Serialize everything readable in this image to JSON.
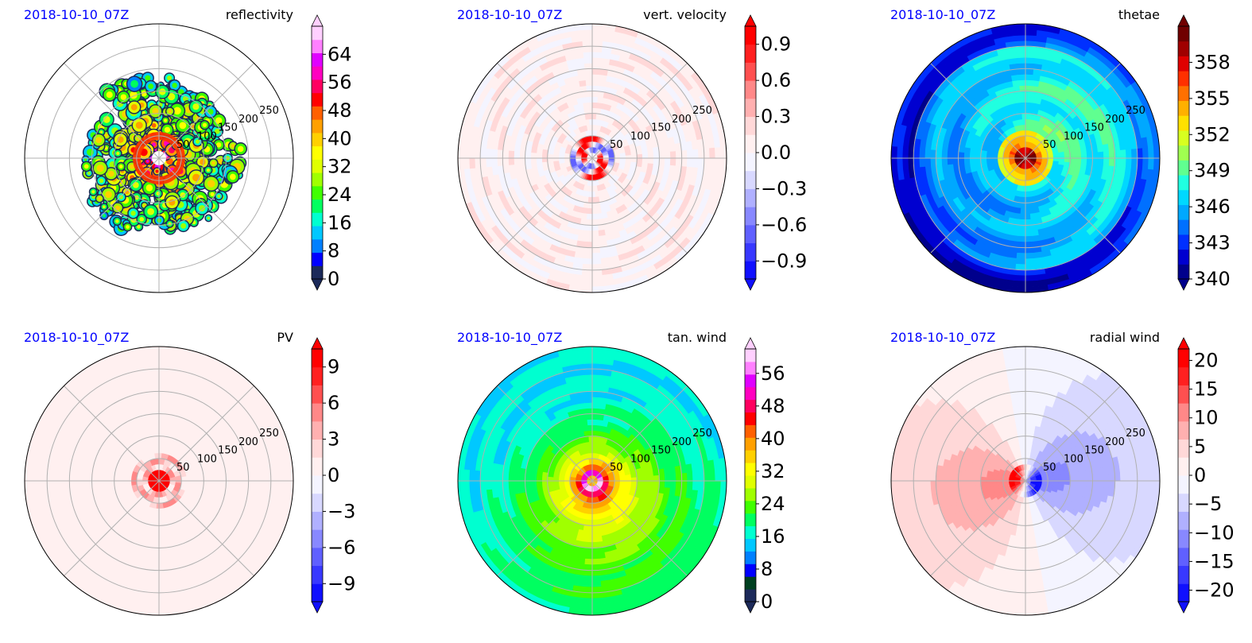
{
  "figure": {
    "layout": "2 rows x 3 columns polar panels"
  },
  "chart_data": [
    {
      "type": "heatmap",
      "projection": "polar",
      "date_label": "2018-10-10_07Z",
      "title": "reflectivity",
      "radial_ticks": [
        "50",
        "100",
        "150",
        "200",
        "250"
      ],
      "rlim": [
        0,
        300
      ],
      "grid": true,
      "colorbar": {
        "ticks": [
          "0",
          "8",
          "16",
          "24",
          "32",
          "40",
          "48",
          "56",
          "64"
        ],
        "values": [
          0,
          8,
          16,
          24,
          32,
          40,
          48,
          56,
          64
        ],
        "range": [
          0,
          72
        ],
        "extend": "both",
        "colors": [
          "#1c2a5a",
          "#0000ff",
          "#0080ff",
          "#00c8ff",
          "#00ffd0",
          "#00ff60",
          "#40ff00",
          "#a0ff00",
          "#e0ff00",
          "#ffff00",
          "#ffd000",
          "#ffa000",
          "#ff6000",
          "#ff0000",
          "#ff0060",
          "#ff00c0",
          "#e000ff",
          "#ff80ff",
          "#ffd0ff"
        ]
      },
      "field": {
        "pattern": "convective_bands",
        "eye_radius": 12
      }
    },
    {
      "type": "heatmap",
      "projection": "polar",
      "date_label": "2018-10-10_07Z",
      "title": "vert. velocity",
      "radial_ticks": [
        "50",
        "100",
        "150",
        "200",
        "250"
      ],
      "rlim": [
        0,
        300
      ],
      "grid": true,
      "colorbar": {
        "ticks": [
          "−0.9",
          "−0.6",
          "−0.3",
          "0.0",
          "0.3",
          "0.6",
          "0.9"
        ],
        "values": [
          -0.9,
          -0.6,
          -0.3,
          0.0,
          0.3,
          0.6,
          0.9
        ],
        "range": [
          -1.05,
          1.05
        ],
        "extend": "both",
        "colors": [
          "#1010ff",
          "#3838ff",
          "#6060ff",
          "#8888ff",
          "#b0b0ff",
          "#d8d8ff",
          "#f4f4ff",
          "#fff0f0",
          "#ffd8d8",
          "#ffb0b0",
          "#ff8888",
          "#ff5050",
          "#ff2020",
          "#ff0000"
        ]
      },
      "field": {
        "pattern": "speckled_diverging",
        "eyewall_peak": 1.0
      }
    },
    {
      "type": "heatmap",
      "projection": "polar",
      "date_label": "2018-10-10_07Z",
      "title": "thetae",
      "radial_ticks": [
        "50",
        "100",
        "150",
        "200",
        "250"
      ],
      "rlim": [
        0,
        300
      ],
      "grid": true,
      "colorbar": {
        "ticks": [
          "340",
          "343",
          "346",
          "349",
          "352",
          "355",
          "358"
        ],
        "values": [
          340,
          343,
          346,
          349,
          352,
          355,
          358
        ],
        "range": [
          340,
          361
        ],
        "extend": "both",
        "colors": [
          "#00008c",
          "#0000d0",
          "#0030ff",
          "#0070ff",
          "#00a8ff",
          "#00d8ff",
          "#20ffe0",
          "#60ff90",
          "#a0ff50",
          "#d8ff20",
          "#ffe000",
          "#ffb000",
          "#ff7000",
          "#ff3000",
          "#e00000",
          "#a00000",
          "#700000"
        ]
      },
      "field": {
        "pattern": "warm_core",
        "core_value": 359,
        "mean_value": 348
      }
    },
    {
      "type": "heatmap",
      "projection": "polar",
      "date_label": "2018-10-10_07Z",
      "title": "PV",
      "radial_ticks": [
        "50",
        "100",
        "150",
        "200",
        "250"
      ],
      "rlim": [
        0,
        300
      ],
      "grid": true,
      "colorbar": {
        "ticks": [
          "−9",
          "−6",
          "−3",
          "0",
          "3",
          "6",
          "9"
        ],
        "values": [
          -9,
          -6,
          -3,
          0,
          3,
          6,
          9
        ],
        "range": [
          -10.5,
          10.5
        ],
        "extend": "both",
        "colors": [
          "#1010ff",
          "#3838ff",
          "#6060ff",
          "#8888ff",
          "#b0b0ff",
          "#d8d8ff",
          "#f4f4ff",
          "#fff0f0",
          "#ffd8d8",
          "#ffb0b0",
          "#ff8888",
          "#ff5050",
          "#ff2020",
          "#ff0000"
        ]
      },
      "field": {
        "pattern": "core_max",
        "core_value": 10
      }
    },
    {
      "type": "heatmap",
      "projection": "polar",
      "date_label": "2018-10-10_07Z",
      "title": "tan. wind",
      "radial_ticks": [
        "50",
        "100",
        "150",
        "200",
        "250"
      ],
      "rlim": [
        0,
        300
      ],
      "grid": true,
      "colorbar": {
        "ticks": [
          "0",
          "8",
          "16",
          "24",
          "32",
          "40",
          "48",
          "56"
        ],
        "values": [
          0,
          8,
          16,
          24,
          32,
          40,
          48,
          56
        ],
        "range": [
          0,
          62
        ],
        "extend": "both",
        "colors": [
          "#1c2a5a",
          "#004020",
          "#0000ff",
          "#0080ff",
          "#00c8ff",
          "#00ffd0",
          "#00ff60",
          "#40ff00",
          "#a0ff00",
          "#e0ff00",
          "#ffff00",
          "#ffd000",
          "#ffa000",
          "#ff6000",
          "#ff0000",
          "#ff0060",
          "#ff00c0",
          "#e000ff",
          "#ff80ff",
          "#ffd0ff"
        ]
      },
      "field": {
        "pattern": "rmw_ring",
        "max_wind": 62,
        "rmw": 15
      }
    },
    {
      "type": "heatmap",
      "projection": "polar",
      "date_label": "2018-10-10_07Z",
      "title": "radial wind",
      "radial_ticks": [
        "50",
        "100",
        "150",
        "200",
        "250"
      ],
      "rlim": [
        0,
        300
      ],
      "grid": true,
      "colorbar": {
        "ticks": [
          "−20",
          "−15",
          "−10",
          "−5",
          "0",
          "5",
          "10",
          "15",
          "20"
        ],
        "values": [
          -20,
          -15,
          -10,
          -5,
          0,
          5,
          10,
          15,
          20
        ],
        "range": [
          -22,
          22
        ],
        "extend": "both",
        "colors": [
          "#1010ff",
          "#3838ff",
          "#6060ff",
          "#8888ff",
          "#b0b0ff",
          "#d8d8ff",
          "#f4f4ff",
          "#fff0f0",
          "#ffd8d8",
          "#ffb0b0",
          "#ff8888",
          "#ff5050",
          "#ff2020",
          "#ff0000"
        ]
      },
      "field": {
        "pattern": "dipole",
        "inflow_side": "east"
      }
    }
  ]
}
